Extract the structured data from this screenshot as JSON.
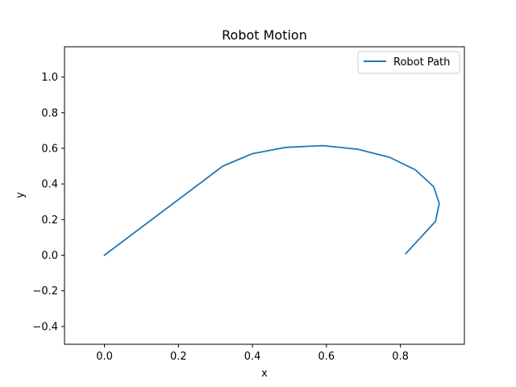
{
  "chart_data": {
    "type": "line",
    "title": "Robot Motion",
    "xlabel": "x",
    "ylabel": "y",
    "xlim": [
      -0.108,
      0.973
    ],
    "ylim": [
      -0.5,
      1.17
    ],
    "xticks": [
      0.0,
      0.2,
      0.4,
      0.6,
      0.8
    ],
    "yticks": [
      -0.4,
      -0.2,
      0.0,
      0.2,
      0.4,
      0.6,
      0.8,
      1.0
    ],
    "grid": false,
    "legend_position": "top-right",
    "series": [
      {
        "name": "Robot Path",
        "color": "#1f77b4",
        "x": [
          0.0,
          0.32,
          0.4,
          0.49,
          0.59,
          0.685,
          0.77,
          0.84,
          0.89,
          0.905,
          0.895,
          0.815
        ],
        "y": [
          0.0,
          0.5,
          0.57,
          0.605,
          0.615,
          0.595,
          0.55,
          0.48,
          0.385,
          0.29,
          0.19,
          0.01
        ]
      }
    ]
  }
}
